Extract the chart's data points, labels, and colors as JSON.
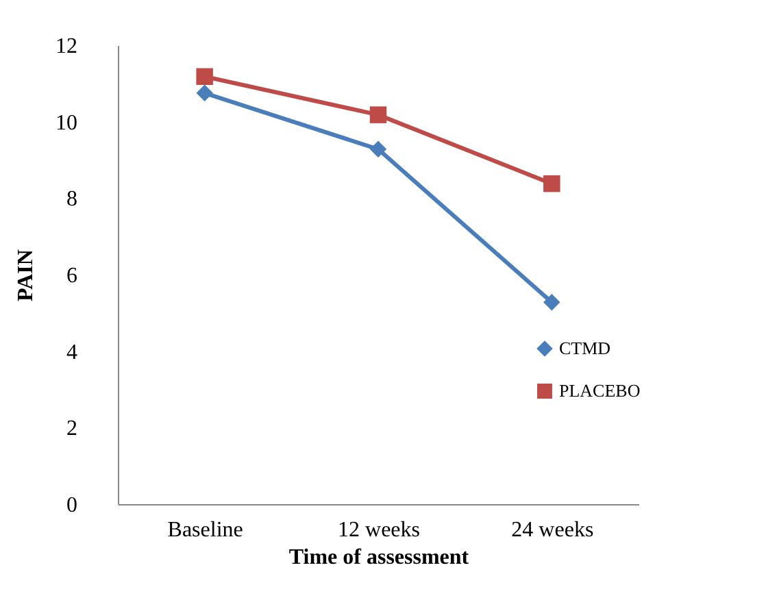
{
  "chart_data": {
    "type": "line",
    "xlabel": "Time of assessment",
    "ylabel": "PAIN",
    "categories": [
      "Baseline",
      "12 weeks",
      "24 weeks"
    ],
    "series": [
      {
        "name": "CTMD",
        "color": "#4a7ebb",
        "marker": "diamond",
        "values": [
          10.75,
          9.28,
          5.28
        ]
      },
      {
        "name": "PLACEBO",
        "color": "#be4b48",
        "marker": "square",
        "values": [
          11.18,
          10.18,
          8.38
        ]
      }
    ],
    "ylim": [
      0,
      12
    ],
    "yticks": [
      0,
      2,
      4,
      6,
      8,
      10,
      12
    ],
    "grid": false,
    "legend": "right",
    "line_style": "solid"
  }
}
